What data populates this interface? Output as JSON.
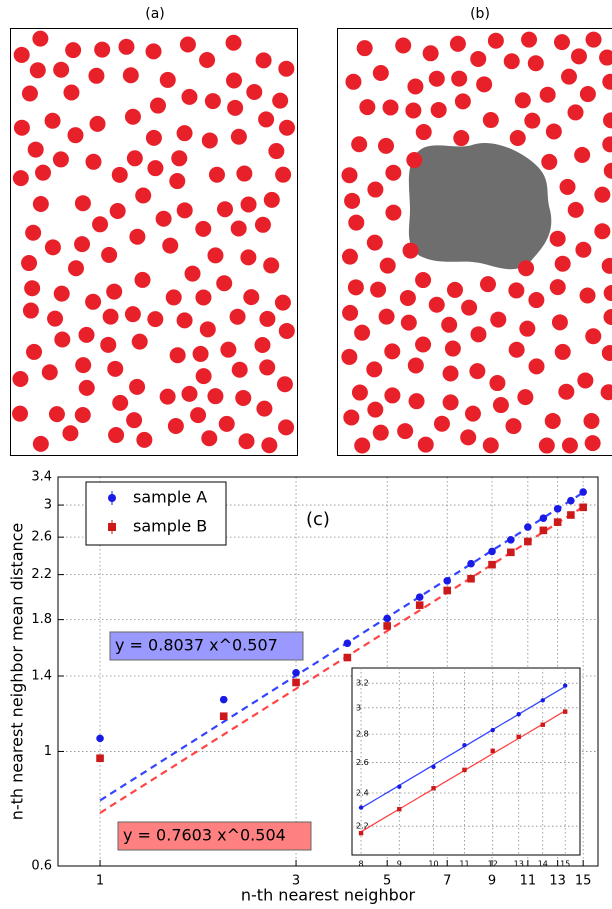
{
  "panels": [
    "(a)",
    "(b)"
  ],
  "chart_data": {
    "type": "scatter",
    "annotation": "(c)",
    "x_label": "n-th nearest neighbor",
    "y_label": "n-th nearest neighbor mean distance",
    "xscale": "log",
    "yscale": "log",
    "grid": true,
    "legend": "upper left",
    "x": [
      1,
      2,
      3,
      4,
      5,
      6,
      7,
      8,
      9,
      10,
      11,
      12,
      13,
      14,
      15
    ],
    "series": [
      {
        "name": "sample A",
        "color": "#1a1ae6",
        "marker": "circle",
        "values": [
          1.06,
          1.26,
          1.42,
          1.62,
          1.81,
          1.99,
          2.14,
          2.31,
          2.44,
          2.57,
          2.72,
          2.83,
          2.95,
          3.06,
          3.18
        ]
      },
      {
        "name": "sample B",
        "color": "#cc1a1a",
        "marker": "square",
        "values": [
          0.97,
          1.17,
          1.36,
          1.52,
          1.75,
          1.92,
          2.05,
          2.16,
          2.3,
          2.43,
          2.55,
          2.68,
          2.78,
          2.87,
          2.97
        ]
      }
    ],
    "fits": [
      {
        "coefficient": 0.8037,
        "exponent": 0.507,
        "label": "y = 0.8037 x^0.507",
        "color": "#3344ff",
        "box_color": "#9999ff"
      },
      {
        "coefficient": 0.7603,
        "exponent": 0.504,
        "label": "y = 0.7603 x^0.504",
        "color": "#ff4444",
        "box_color": "#ff8080"
      }
    ],
    "xlim": [
      0.79,
      16.3
    ],
    "xticks": [
      1,
      3,
      5,
      7,
      9,
      11,
      13,
      15
    ],
    "ylim": [
      0.6,
      3.4
    ],
    "yticks": [
      0.6,
      1.0,
      1.4,
      1.8,
      2.2,
      2.6,
      3.0,
      3.4
    ],
    "inset": {
      "xlim": [
        7.78,
        15.7
      ],
      "xticks": [
        8,
        9,
        10,
        11,
        12,
        13,
        14,
        15
      ],
      "ylim": [
        2.04,
        3.33
      ],
      "yticks": [
        2.2,
        2.4,
        2.6,
        2.8,
        3.0,
        3.2
      ]
    }
  }
}
